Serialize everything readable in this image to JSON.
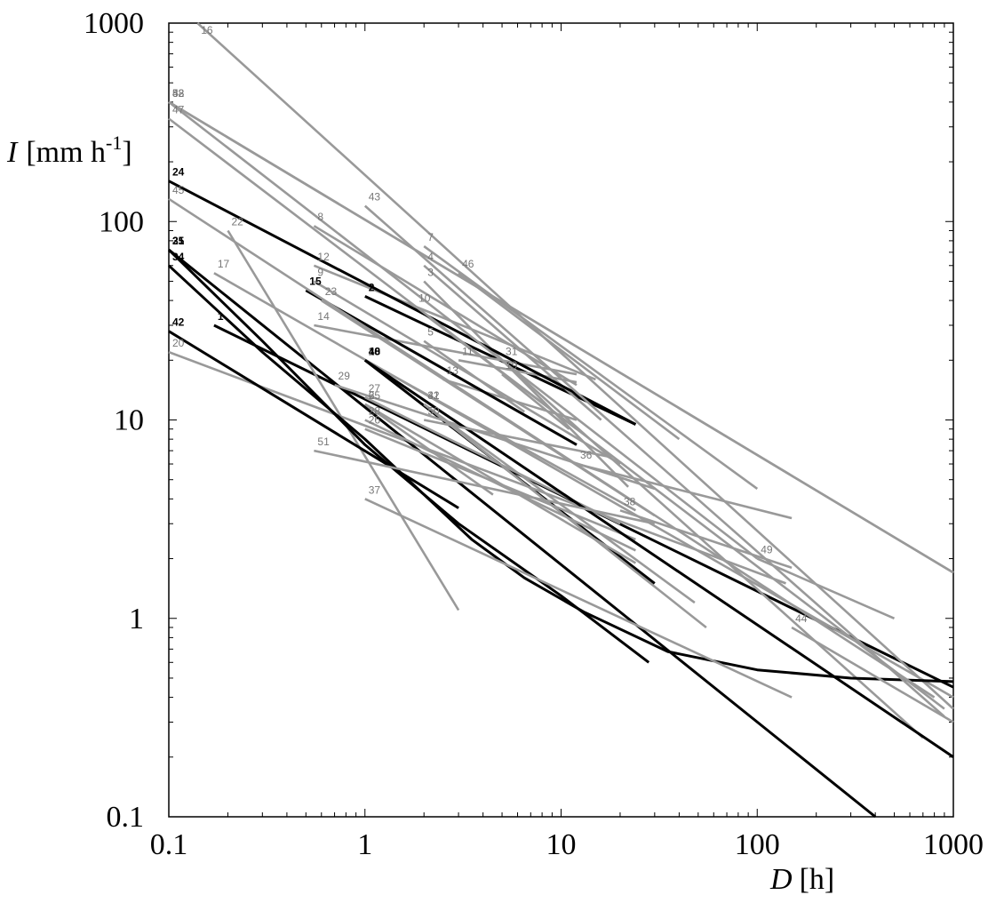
{
  "chart_data": {
    "type": "line",
    "title": "",
    "x_scale": "log",
    "y_scale": "log",
    "xlim": [
      0.1,
      1000
    ],
    "ylim": [
      0.1,
      1000
    ],
    "x_tick_labels": [
      "0.1",
      "1",
      "10",
      "100",
      "1000"
    ],
    "y_tick_labels": [
      "0.1",
      "1",
      "10",
      "100",
      "1000"
    ],
    "xlabel": {
      "symbol": "D",
      "unit": "[h]"
    },
    "ylabel": {
      "symbol": "I",
      "unit_prefix": "[mm h",
      "unit_exp": "-1",
      "unit_suffix": "]"
    },
    "grid": false,
    "colors": {
      "black": "#000000",
      "dark_gray": "#999999",
      "light_gray": "#a0a0a0"
    },
    "series": [
      {
        "label": "1",
        "style": "black",
        "points": [
          [
            0.17,
            30
          ],
          [
            1000,
            0.45
          ]
        ]
      },
      {
        "label": "2",
        "style": "black",
        "points": [
          [
            1,
            42
          ],
          [
            24,
            9.5
          ]
        ]
      },
      {
        "label": "3",
        "style": "gray",
        "points": [
          [
            2,
            50
          ],
          [
            22,
            4.6
          ]
        ]
      },
      {
        "label": "4",
        "style": "gray",
        "points": [
          [
            2,
            60
          ],
          [
            16,
            10
          ]
        ]
      },
      {
        "label": "5",
        "style": "gray",
        "points": [
          [
            2,
            25
          ],
          [
            6.5,
            11
          ]
        ]
      },
      {
        "label": "6",
        "style": "gray",
        "points": [
          [
            1,
            12
          ],
          [
            4.5,
            4.2
          ]
        ]
      },
      {
        "label": "7",
        "style": "gray",
        "points": [
          [
            2,
            75
          ],
          [
            100,
            4.5
          ]
        ]
      },
      {
        "label": "8",
        "style": "gray",
        "points": [
          [
            0.55,
            95
          ],
          [
            12,
            15
          ]
        ]
      },
      {
        "label": "9",
        "style": "gray",
        "points": [
          [
            0.55,
            50
          ],
          [
            20,
            6
          ]
        ]
      },
      {
        "label": "10",
        "style": "gray",
        "points": [
          [
            1.8,
            37
          ],
          [
            12,
            9
          ]
        ]
      },
      {
        "label": "11",
        "style": "gray",
        "points": [
          [
            3,
            20
          ],
          [
            12,
            15.5
          ]
        ]
      },
      {
        "label": "12",
        "style": "gray",
        "points": [
          [
            0.55,
            60
          ],
          [
            15,
            16
          ]
        ]
      },
      {
        "label": "13",
        "style": "gray",
        "points": [
          [
            2.5,
            16
          ],
          [
            12,
            10
          ]
        ]
      },
      {
        "label": "14",
        "style": "gray",
        "points": [
          [
            0.55,
            30
          ],
          [
            12,
            17
          ]
        ]
      },
      {
        "label": "15",
        "style": "black",
        "points": [
          [
            0.5,
            45
          ],
          [
            12,
            7.5
          ]
        ]
      },
      {
        "label": "16",
        "style": "gray",
        "points": [
          [
            0.14,
            1000
          ],
          [
            1000,
            0.35
          ]
        ]
      },
      {
        "label": "17",
        "style": "gray",
        "points": [
          [
            0.17,
            55
          ],
          [
            1000,
            0.4
          ]
        ]
      },
      {
        "label": "18",
        "style": "black",
        "points": [
          [
            1,
            20
          ],
          [
            30,
            1.5
          ]
        ]
      },
      {
        "label": "19",
        "style": "gray",
        "points": [
          [
            5,
            17
          ],
          [
            11,
            9
          ]
        ]
      },
      {
        "label": "20",
        "style": "gray",
        "points": [
          [
            0.1,
            22
          ],
          [
            140,
            1.5
          ]
        ]
      },
      {
        "label": "21",
        "style": "black",
        "points": [
          [
            0.1,
            72
          ],
          [
            400,
            0.1
          ]
        ]
      },
      {
        "label": "22",
        "style": "gray",
        "points": [
          [
            0.2,
            90
          ],
          [
            3,
            1.1
          ]
        ]
      },
      {
        "label": "23",
        "style": "gray",
        "points": [
          [
            0.6,
            40
          ],
          [
            30,
            3.3
          ]
        ]
      },
      {
        "label": "24",
        "style": "black",
        "points": [
          [
            0.1,
            160
          ],
          [
            24,
            9.5
          ]
        ]
      },
      {
        "label": "25",
        "style": "gray",
        "points": [
          [
            1,
            12
          ],
          [
            24,
            1.9
          ]
        ]
      },
      {
        "label": "26",
        "style": "gray",
        "points": [
          [
            1,
            9
          ],
          [
            24,
            2.5
          ]
        ]
      },
      {
        "label": "27",
        "style": "gray",
        "points": [
          [
            1,
            13
          ],
          [
            20,
            3
          ]
        ]
      },
      {
        "label": "28",
        "style": "gray",
        "points": [
          [
            1,
            10
          ],
          [
            24,
            2.2
          ]
        ]
      },
      {
        "label": "29",
        "style": "gray",
        "points": [
          [
            0.7,
            15
          ],
          [
            30,
            4.5
          ]
        ]
      },
      {
        "label": "30",
        "style": "gray",
        "points": [
          [
            1,
            20
          ],
          [
            24,
            3.5
          ]
        ]
      },
      {
        "label": "31",
        "style": "gray",
        "points": [
          [
            5,
            20
          ],
          [
            700,
            0.25
          ]
        ]
      },
      {
        "label": "32",
        "style": "gray",
        "points": [
          [
            2,
            12
          ],
          [
            48,
            1.2
          ]
        ]
      },
      {
        "label": "33",
        "style": "gray",
        "points": [
          [
            0.1,
            400
          ],
          [
            1000,
            1.7
          ]
        ]
      },
      {
        "label": "34",
        "style": "black",
        "points": [
          [
            0.1,
            60
          ],
          [
            0.3,
            22
          ],
          [
            1,
            8
          ],
          [
            3.5,
            2.5
          ],
          [
            6.5,
            1.6
          ],
          [
            13,
            1.08
          ],
          [
            35,
            0.68
          ],
          [
            100,
            0.55
          ],
          [
            300,
            0.5
          ],
          [
            1000,
            0.48
          ]
        ]
      },
      {
        "label": "35",
        "style": "black",
        "points": [
          [
            0.1,
            72
          ],
          [
            0.3,
            25
          ],
          [
            1,
            7.5
          ],
          [
            3,
            3
          ],
          [
            10,
            1.3
          ],
          [
            28,
            0.6
          ]
        ]
      },
      {
        "label": "36",
        "style": "gray",
        "points": [
          [
            12,
            6
          ],
          [
            150,
            3.2
          ]
        ]
      },
      {
        "label": "37",
        "style": "gray",
        "points": [
          [
            1,
            4
          ],
          [
            150,
            0.4
          ]
        ]
      },
      {
        "label": "38",
        "style": "gray",
        "points": [
          [
            20,
            3.5
          ],
          [
            150,
            1.8
          ]
        ]
      },
      {
        "label": "40",
        "style": "black",
        "points": [
          [
            1,
            20
          ],
          [
            1000,
            0.2
          ]
        ]
      },
      {
        "label": "41",
        "style": "gray",
        "points": [
          [
            2,
            12
          ],
          [
            55,
            0.9
          ]
        ]
      },
      {
        "label": "42",
        "style": "black",
        "points": [
          [
            0.1,
            28
          ],
          [
            3,
            3.6
          ]
        ]
      },
      {
        "label": "43",
        "style": "gray",
        "points": [
          [
            1,
            120
          ],
          [
            900,
            0.32
          ]
        ]
      },
      {
        "label": "44",
        "style": "gray",
        "points": [
          [
            150,
            0.9
          ],
          [
            1000,
            0.3
          ]
        ]
      },
      {
        "label": "45",
        "style": "gray",
        "points": [
          [
            0.1,
            130
          ],
          [
            800,
            0.4
          ]
        ]
      },
      {
        "label": "46",
        "style": "gray",
        "points": [
          [
            3,
            55
          ],
          [
            40,
            8
          ]
        ]
      },
      {
        "label": "47",
        "style": "gray",
        "points": [
          [
            0.1,
            330
          ],
          [
            900,
            0.35
          ]
        ]
      },
      {
        "label": "48",
        "style": "gray",
        "points": [
          [
            0.1,
            400
          ],
          [
            100,
            2
          ]
        ]
      },
      {
        "label": "49",
        "style": "gray",
        "points": [
          [
            100,
            2
          ],
          [
            500,
            1
          ]
        ]
      },
      {
        "label": "50",
        "style": "gray",
        "points": [
          [
            2,
            10
          ],
          [
            18,
            6.5
          ]
        ]
      },
      {
        "label": "51",
        "style": "gray",
        "points": [
          [
            0.55,
            7
          ],
          [
            30,
            3
          ]
        ]
      },
      {
        "label": "52",
        "style": "gray",
        "points": [
          [
            0.1,
            400
          ],
          [
            1000,
            1.7
          ]
        ]
      }
    ]
  }
}
